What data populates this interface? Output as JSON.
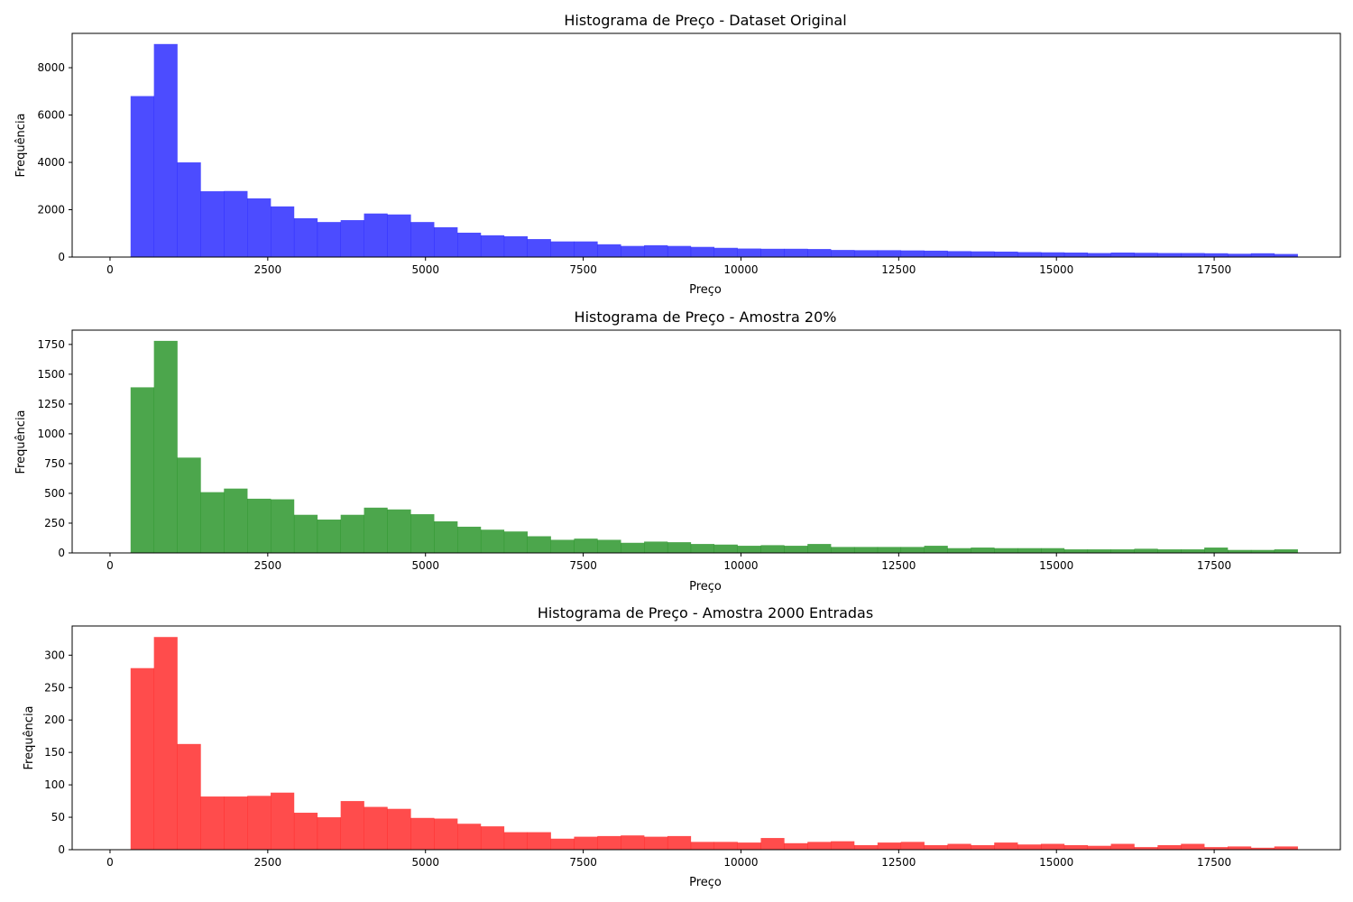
{
  "figure": {
    "background": "#ffffff"
  },
  "chart_data": [
    {
      "type": "bar",
      "title": "Histograma de Preço - Dataset Original",
      "xlabel": "Preço",
      "ylabel": "Frequência",
      "color": "#0000ff",
      "xlim": [
        -600,
        19500
      ],
      "ylim": [
        0,
        9450
      ],
      "xticks": [
        0,
        2500,
        5000,
        7500,
        10000,
        12500,
        15000,
        17500
      ],
      "yticks": [
        0,
        2000,
        4000,
        6000,
        8000
      ],
      "bins": {
        "start": 326,
        "end": 18823,
        "count": 50
      },
      "values": [
        6800,
        9000,
        4000,
        2780,
        2790,
        2480,
        2140,
        1640,
        1480,
        1560,
        1840,
        1800,
        1480,
        1260,
        1030,
        920,
        880,
        760,
        660,
        660,
        540,
        470,
        500,
        470,
        430,
        390,
        360,
        350,
        350,
        340,
        300,
        290,
        290,
        280,
        270,
        250,
        240,
        230,
        210,
        200,
        190,
        170,
        190,
        180,
        170,
        170,
        160,
        140,
        160,
        130
      ]
    },
    {
      "type": "bar",
      "title": "Histograma de Preço - Amostra 20%",
      "xlabel": "Preço",
      "ylabel": "Frequência",
      "color": "#008000",
      "xlim": [
        -600,
        19500
      ],
      "ylim": [
        0,
        1870
      ],
      "xticks": [
        0,
        2500,
        5000,
        7500,
        10000,
        12500,
        15000,
        17500
      ],
      "yticks": [
        0,
        250,
        500,
        750,
        1000,
        1250,
        1500,
        1750
      ],
      "bins": {
        "start": 326,
        "end": 18823,
        "count": 50
      },
      "values": [
        1390,
        1780,
        800,
        510,
        540,
        455,
        450,
        320,
        280,
        320,
        380,
        365,
        325,
        265,
        220,
        195,
        180,
        140,
        110,
        120,
        110,
        85,
        95,
        90,
        75,
        70,
        60,
        65,
        60,
        75,
        50,
        50,
        50,
        50,
        60,
        40,
        45,
        40,
        40,
        40,
        30,
        30,
        30,
        35,
        30,
        30,
        45,
        25,
        25,
        30
      ]
    },
    {
      "type": "bar",
      "title": "Histograma de Preço - Amostra 2000 Entradas",
      "xlabel": "Preço",
      "ylabel": "Frequência",
      "color": "#ff0000",
      "xlim": [
        -600,
        19500
      ],
      "ylim": [
        0,
        345
      ],
      "xticks": [
        0,
        2500,
        5000,
        7500,
        10000,
        12500,
        15000,
        17500
      ],
      "yticks": [
        0,
        50,
        100,
        150,
        200,
        250,
        300
      ],
      "bins": {
        "start": 326,
        "end": 18823,
        "count": 50
      },
      "values": [
        280,
        328,
        163,
        82,
        82,
        83,
        88,
        57,
        50,
        75,
        66,
        63,
        49,
        48,
        40,
        36,
        27,
        27,
        17,
        20,
        21,
        22,
        20,
        21,
        12,
        12,
        11,
        18,
        10,
        12,
        13,
        7,
        11,
        12,
        7,
        9,
        7,
        11,
        8,
        9,
        7,
        6,
        9,
        4,
        7,
        9,
        4,
        5,
        3,
        5
      ]
    }
  ]
}
